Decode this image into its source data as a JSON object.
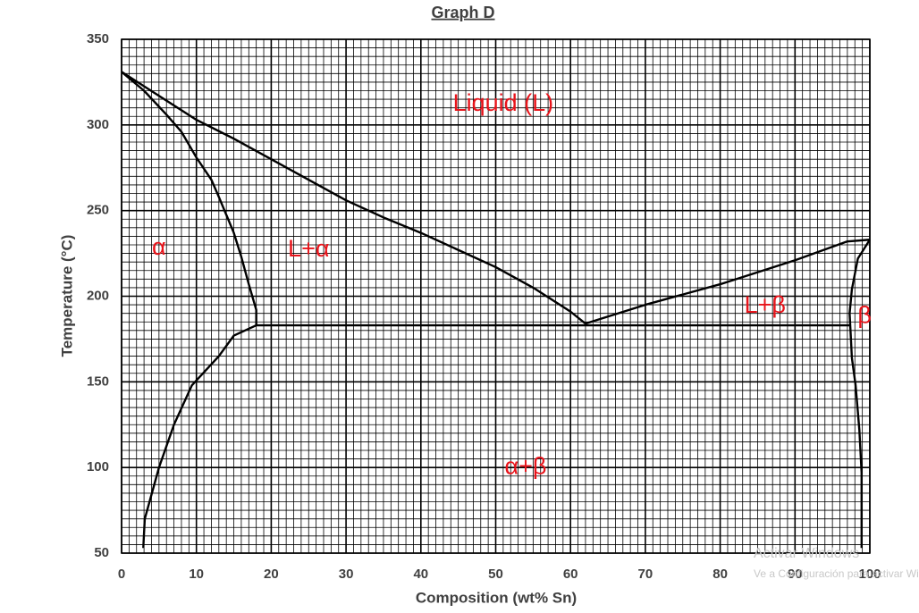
{
  "chart_data": {
    "type": "line",
    "title": "Graph D",
    "x_label": "Composition  (wt% Sn)",
    "y_label": "Temperature (°C)",
    "xlim": [
      0,
      100
    ],
    "ylim": [
      50,
      350
    ],
    "xticks": [
      0,
      10,
      20,
      30,
      40,
      50,
      60,
      70,
      80,
      90,
      100
    ],
    "yticks": [
      50,
      100,
      150,
      200,
      250,
      300,
      350
    ],
    "grid": true,
    "minor_divisions": 10,
    "series": [
      {
        "color": "#000000",
        "x": [
          0,
          5,
          10,
          15,
          20,
          25,
          30,
          35,
          40,
          45,
          50,
          55,
          60,
          62
        ],
        "values": [
          331,
          317,
          303,
          292,
          280,
          268,
          256,
          246,
          237,
          227,
          217,
          205,
          191,
          184
        ]
      },
      {
        "color": "#000000",
        "x": [
          62,
          70,
          80,
          90,
          97,
          100
        ],
        "values": [
          184,
          195,
          207,
          221,
          232,
          233
        ]
      },
      {
        "color": "#000000",
        "x": [
          0,
          3,
          6,
          8,
          10,
          12,
          13,
          15,
          16,
          17,
          18,
          18
        ],
        "values": [
          331,
          320,
          306,
          296,
          281,
          268,
          258,
          237,
          223,
          207,
          192,
          183
        ]
      },
      {
        "color": "#000000",
        "x": [
          18,
          15,
          13,
          9.4,
          7,
          5,
          3.1,
          2.9
        ],
        "values": [
          183,
          177,
          165,
          148,
          125,
          100,
          70,
          53
        ]
      },
      {
        "color": "#000000",
        "x": [
          18,
          97.3
        ],
        "values": [
          183,
          183
        ]
      },
      {
        "color": "#000000",
        "x": [
          100,
          98.4,
          97.6,
          97.3,
          97.6,
          98.1,
          98.6,
          98.9,
          98.9
        ],
        "values": [
          233,
          222,
          204,
          190,
          164,
          148,
          122,
          97,
          53
        ]
      }
    ],
    "annotations": [
      "Liquid (L)",
      "α",
      "L+α",
      "L+β",
      "β",
      "α+β"
    ]
  },
  "watermark": {
    "title": "Activar Windows",
    "subtitle": "Ve a Configuración para activar Windows"
  }
}
